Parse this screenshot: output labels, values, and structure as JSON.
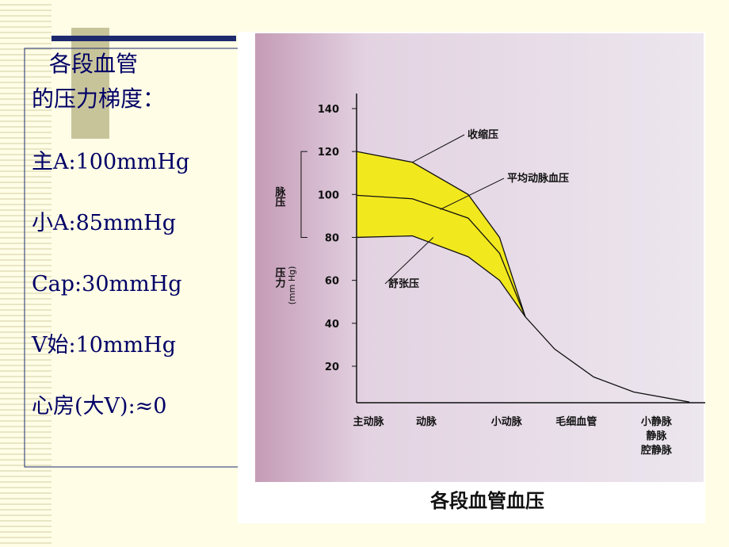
{
  "panel": {
    "title_lines": [
      "各段血管",
      "的压力梯度："
    ],
    "items": [
      "主A:100mmHg",
      "小A:85mmHg",
      "Cap:30mmHg",
      "V始:10mmHg",
      "心房(大V):≈0"
    ]
  },
  "chart_data": {
    "type": "line",
    "caption": "各段血管血压",
    "y_label": "压力",
    "y_unit": "(mm Hg)",
    "pulse_label": "脉压",
    "x": [
      0,
      16,
      32,
      41,
      48.4,
      56.8,
      68,
      79.5,
      95.5
    ],
    "series": [
      {
        "name": "收缩压",
        "color": "#111111",
        "values": [
          120,
          115,
          100,
          80,
          43,
          null,
          null,
          null,
          null
        ]
      },
      {
        "name": "平均动脉血压",
        "color": "#111111",
        "values": [
          99.6,
          98,
          89,
          72.6,
          43,
          28,
          15,
          8,
          3.3
        ]
      },
      {
        "name": "舒张压",
        "color": "#111111",
        "values": [
          80,
          80.7,
          71,
          60,
          43,
          null,
          null,
          null,
          null
        ]
      }
    ],
    "fill_color": "#f2e81e",
    "xlim": [
      0,
      100
    ],
    "ylim": [
      3,
      147
    ],
    "yticks": [
      20,
      40,
      60,
      80,
      100,
      120,
      140
    ],
    "xticks": [
      {
        "value": 3.4,
        "label": "主动脉"
      },
      {
        "value": 20,
        "label": "动脉"
      },
      {
        "value": 43,
        "label": "小动脉"
      },
      {
        "value": 63,
        "label": "毛细血管"
      },
      {
        "value": 86,
        "label": "小静脉"
      }
    ],
    "extra_x_labels": [
      "静脉",
      "腔静脉"
    ]
  }
}
